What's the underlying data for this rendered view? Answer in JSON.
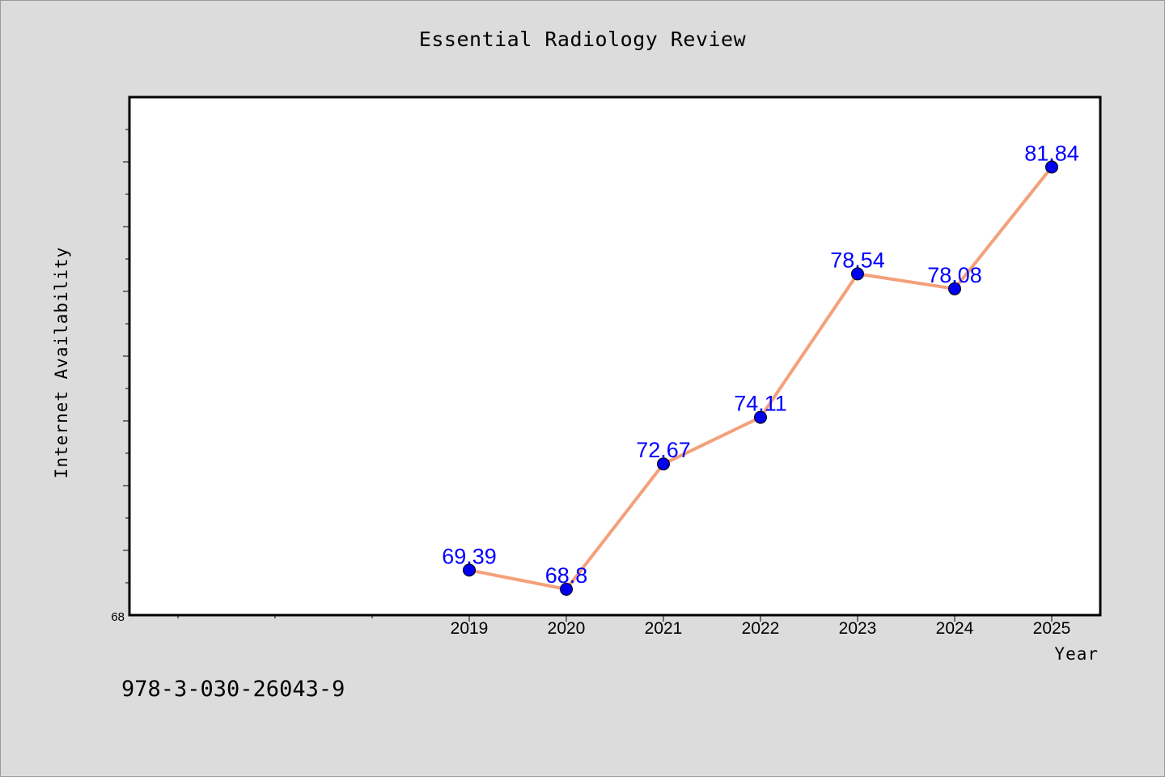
{
  "page": {
    "isbn": "978-3-030-26043-9"
  },
  "chart_data": {
    "type": "line",
    "title": "Essential Radiology Review",
    "xlabel": "Year",
    "ylabel": "Internet Availability",
    "categories": [
      "2019",
      "2020",
      "2021",
      "2022",
      "2023",
      "2024",
      "2025"
    ],
    "series": [
      {
        "values": [
          69.39,
          68.8,
          72.67,
          74.11,
          78.54,
          78.08,
          81.84
        ],
        "data_labels": [
          "69.39",
          "68.8",
          "72.67",
          "74.11",
          "78.54",
          "78.08",
          "81.84"
        ]
      }
    ],
    "x_domain": [
      2015.5,
      2025.5
    ],
    "ylim": [
      68,
      84
    ],
    "y_tick_labels": [
      "68"
    ],
    "line_color": "#f4a07a",
    "marker_color": "#0000ee",
    "label_color": "#0000ff",
    "grid": false,
    "legend": "none"
  }
}
